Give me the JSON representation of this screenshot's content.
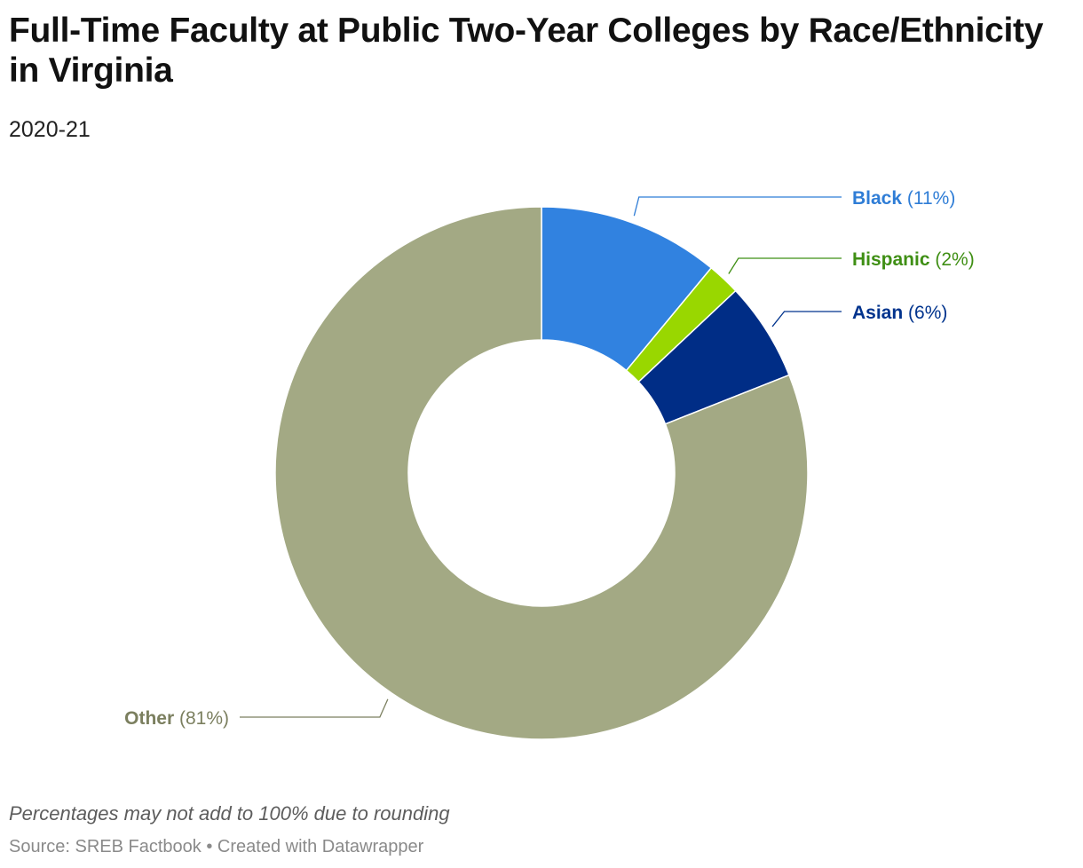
{
  "header": {
    "title": "Full-Time Faculty at Public Two-Year Colleges by Race/Ethnicity in Virginia",
    "subtitle": "2020-21"
  },
  "footer": {
    "note": "Percentages may not add to 100% due to rounding",
    "source": "Source: SREB Factbook",
    "separator": "•",
    "credit": "Created with Datawrapper"
  },
  "chart_data": {
    "type": "pie",
    "variant": "donut",
    "title": "Full-Time Faculty at Public Two-Year Colleges by Race/Ethnicity in Virginia",
    "subtitle": "2020-21",
    "categories": [
      "Black",
      "Hispanic",
      "Asian",
      "Other"
    ],
    "values": [
      11,
      2,
      6,
      81
    ],
    "labels": [
      "(11%)",
      "(2%)",
      "(6%)",
      "(81%)"
    ],
    "colors": [
      "#3182e0",
      "#99d700",
      "#002d86",
      "#a3a984"
    ],
    "label_colors": [
      "#2f7dd6",
      "#3f8f14",
      "#00338d",
      "#7b7f5f"
    ],
    "legend": "none",
    "start_angle": "top, clockwise"
  }
}
